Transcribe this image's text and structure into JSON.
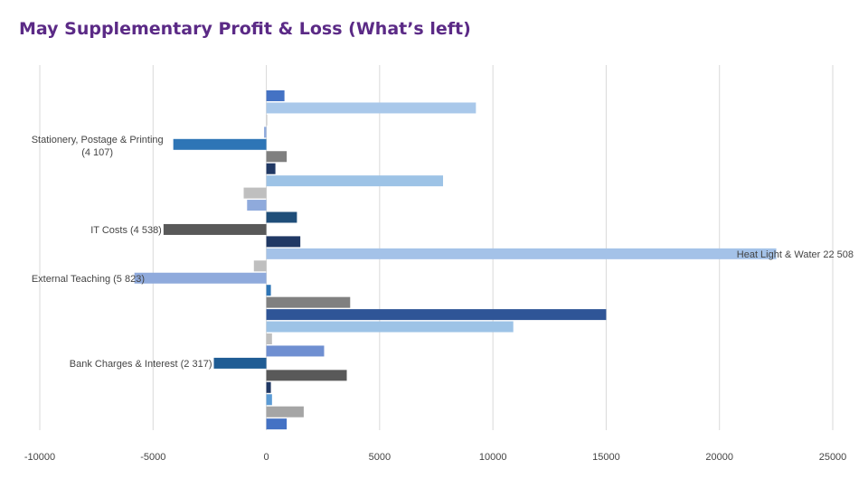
{
  "title": "May Supplementary Profit & Loss (What’s left)",
  "chart_data": {
    "type": "bar",
    "orientation": "horizontal",
    "xlim": [
      -10000,
      25000
    ],
    "x_ticks": [
      -10000,
      -5000,
      0,
      5000,
      10000,
      15000,
      20000,
      25000
    ],
    "x_tick_labels": [
      "-10000",
      "-5000",
      "0",
      "5000",
      "10000",
      "15000",
      "20000",
      "25000"
    ],
    "grid": "vertical",
    "legend": "none",
    "bars": [
      {
        "value": 800,
        "color": "#4472c4",
        "label": ""
      },
      {
        "value": 9250,
        "color": "#a9c8ea",
        "label": ""
      },
      {
        "value": 30,
        "color": "#c9c9c9",
        "label": ""
      },
      {
        "value": -100,
        "color": "#8faadc",
        "label": ""
      },
      {
        "value": -4107,
        "color": "#2e75b6",
        "label": "Stationery, Postage & Printing\n(4 107)"
      },
      {
        "value": 900,
        "color": "#7f7f7f",
        "label": ""
      },
      {
        "value": 400,
        "color": "#203864",
        "label": ""
      },
      {
        "value": 7800,
        "color": "#9dc3e6",
        "label": ""
      },
      {
        "value": -1000,
        "color": "#bfbfbf",
        "label": ""
      },
      {
        "value": -850,
        "color": "#8faadc",
        "label": ""
      },
      {
        "value": 1350,
        "color": "#1f4e79",
        "label": ""
      },
      {
        "value": -4538,
        "color": "#595959",
        "label": "IT Costs  (4 538)"
      },
      {
        "value": 1500,
        "color": "#203864",
        "label": ""
      },
      {
        "value": 22508,
        "color": "#a4c2e8",
        "label": "Heat Light & Water  22 508"
      },
      {
        "value": -550,
        "color": "#bfbfbf",
        "label": ""
      },
      {
        "value": -5823,
        "color": "#8faadc",
        "label": "External Teaching  (5 823)"
      },
      {
        "value": 200,
        "color": "#2e75b6",
        "label": ""
      },
      {
        "value": 3700,
        "color": "#808080",
        "label": ""
      },
      {
        "value": 15000,
        "color": "#2f5597",
        "label": ""
      },
      {
        "value": 10900,
        "color": "#9dc3e6",
        "label": ""
      },
      {
        "value": 250,
        "color": "#bfbfbf",
        "label": ""
      },
      {
        "value": 2550,
        "color": "#6f8fd1",
        "label": ""
      },
      {
        "value": -2317,
        "color": "#1f5c94",
        "label": "Bank Charges & Interest  (2 317)"
      },
      {
        "value": 3550,
        "color": "#595959",
        "label": ""
      },
      {
        "value": 200,
        "color": "#203864",
        "label": ""
      },
      {
        "value": 250,
        "color": "#5b9bd5",
        "label": ""
      },
      {
        "value": 1650,
        "color": "#a5a5a5",
        "label": ""
      },
      {
        "value": 900,
        "color": "#4472c4",
        "label": ""
      }
    ]
  }
}
